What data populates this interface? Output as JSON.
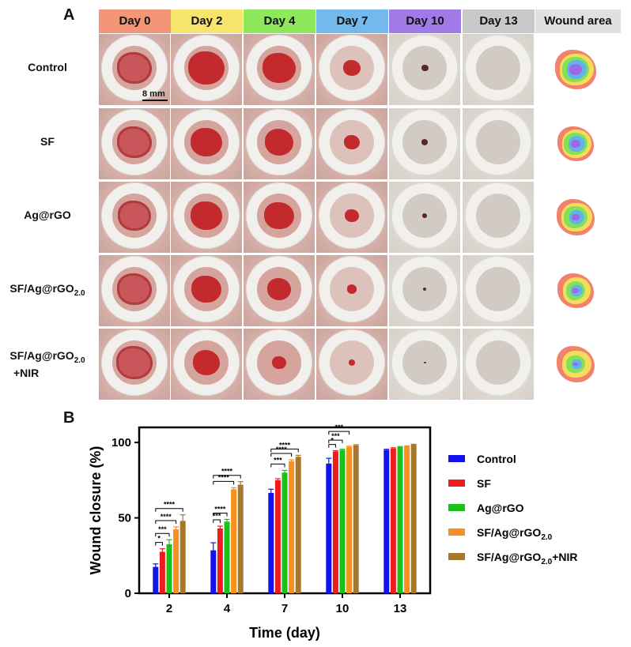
{
  "panels": {
    "a": "A",
    "b": "B"
  },
  "grid": {
    "column_headers": [
      {
        "label": "Day 0",
        "color": "#f39677"
      },
      {
        "label": "Day 2",
        "color": "#f7e46f"
      },
      {
        "label": "Day 4",
        "color": "#8fe85c"
      },
      {
        "label": "Day 7",
        "color": "#73b9ec"
      },
      {
        "label": "Day 10",
        "color": "#a07ae6"
      },
      {
        "label": "Day 13",
        "color": "#c9c9c9"
      },
      {
        "label": "Wound area",
        "color": "#e0e0e0"
      }
    ],
    "rows": [
      {
        "name": "Control"
      },
      {
        "name": "SF"
      },
      {
        "name": "Ag@rGO"
      },
      {
        "name": "SF/Ag@rGO",
        "sub": "2.0"
      },
      {
        "name": "SF/Ag@rGO",
        "sub": "2.0",
        "line2": "+NIR"
      }
    ],
    "scale_bar": "8 mm"
  },
  "chart_data": {
    "type": "bar",
    "title": "",
    "xlabel": "Time (day)",
    "ylabel": "Wound closure (%)",
    "ylim": [
      0,
      110
    ],
    "yticks": [
      "0",
      "50",
      "100"
    ],
    "categories": [
      "2",
      "4",
      "7",
      "10",
      "13"
    ],
    "series": [
      {
        "name": "Control",
        "sub": "",
        "suffix": "",
        "color": "#1212ee",
        "values": [
          17.5,
          28.5,
          66.5,
          86,
          95
        ],
        "err": [
          2,
          5,
          2.5,
          3.5,
          0.5
        ]
      },
      {
        "name": "SF",
        "sub": "",
        "suffix": "",
        "color": "#ee1c1c",
        "values": [
          27.5,
          43,
          75,
          94,
          96
        ],
        "err": [
          2,
          1.5,
          1,
          0.5,
          0.5
        ]
      },
      {
        "name": "Ag@rGO",
        "sub": "",
        "suffix": "",
        "color": "#19c119",
        "values": [
          32.5,
          47.5,
          80,
          95,
          97
        ],
        "err": [
          3,
          1.5,
          1.5,
          0.5,
          0.3
        ]
      },
      {
        "name": "SF/Ag@rGO",
        "sub": "2.0",
        "suffix": "",
        "color": "#f7901e",
        "values": [
          42.5,
          69,
          87.5,
          97,
          97.5
        ],
        "err": [
          1.5,
          1,
          1,
          0.5,
          0.3
        ]
      },
      {
        "name": "SF/Ag@rGO",
        "sub": "2.0",
        "suffix": "+NIR",
        "color": "#a8772e",
        "values": [
          48,
          72,
          90.5,
          98,
          98.5
        ],
        "err": [
          4,
          2,
          1,
          0.5,
          0.3
        ]
      }
    ],
    "significance": [
      {
        "group": 0,
        "to": 1,
        "label": "*"
      },
      {
        "group": 0,
        "to": 2,
        "label": "***"
      },
      {
        "group": 0,
        "to": 3,
        "label": "****"
      },
      {
        "group": 0,
        "to": 4,
        "label": "****"
      },
      {
        "group": 1,
        "to": 1,
        "label": "***"
      },
      {
        "group": 1,
        "to": 2,
        "label": "****"
      },
      {
        "group": 1,
        "to": 3,
        "label": "****"
      },
      {
        "group": 1,
        "to": 4,
        "label": "****"
      },
      {
        "group": 2,
        "to": 2,
        "label": "***"
      },
      {
        "group": 2,
        "to": 3,
        "label": "****"
      },
      {
        "group": 2,
        "to": 4,
        "label": "****"
      },
      {
        "group": 3,
        "to": 1,
        "label": "*"
      },
      {
        "group": 3,
        "to": 2,
        "label": "***"
      },
      {
        "group": 3,
        "to": 3,
        "label": "***"
      }
    ]
  }
}
